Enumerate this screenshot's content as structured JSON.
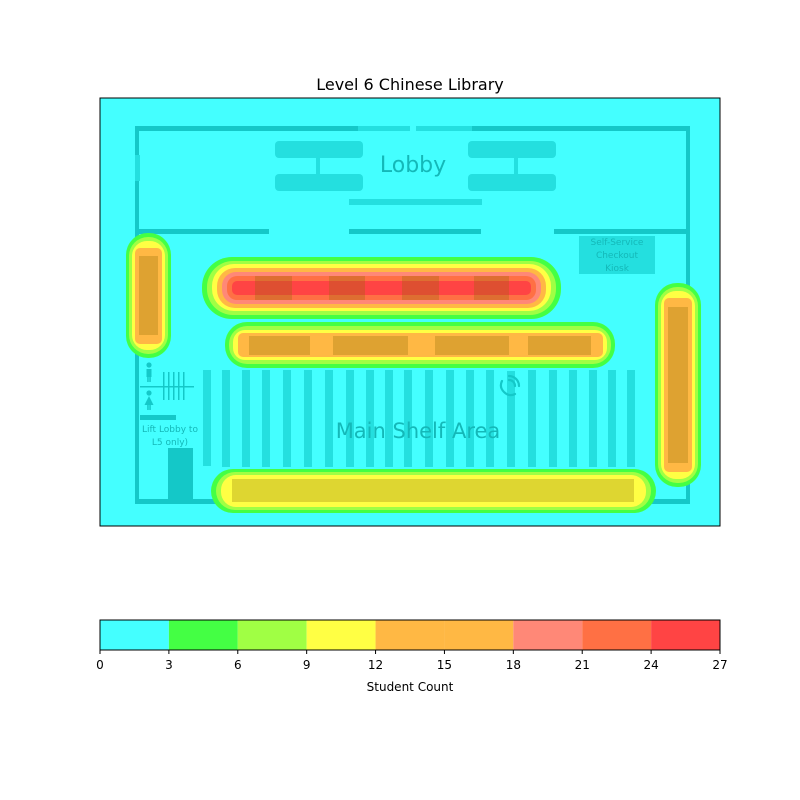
{
  "chart_data": {
    "type": "heatmap",
    "title": "Level 6 Chinese Library",
    "colorbar": {
      "label": "Student Count",
      "levels": [
        0,
        3,
        6,
        9,
        12,
        15,
        18,
        21,
        24,
        27
      ],
      "band_colors": [
        "#44ffff",
        "#44ff44",
        "#a0ff44",
        "#ffff44",
        "#ffb844",
        "#ffb844",
        "#ff8877",
        "#ff7044",
        "#ff4444"
      ],
      "ticks": [
        "0",
        "3",
        "6",
        "9",
        "12",
        "15",
        "18",
        "21",
        "24",
        "27"
      ]
    },
    "grid": false,
    "hotspots": [
      {
        "area": "left wall desks",
        "peak": 16
      },
      {
        "area": "upper study row",
        "peak": 26
      },
      {
        "area": "middle study row",
        "peak": 15
      },
      {
        "area": "right wall desks",
        "peak": 15
      },
      {
        "area": "bottom study row",
        "peak": 11
      }
    ],
    "floor_plan_labels": {
      "lobby": "Lobby",
      "kiosk": [
        "Self-Service",
        "Checkout",
        "Kiosk"
      ],
      "main_shelf": "Main Shelf Area",
      "lift": [
        "Lift Lobby to",
        "L5 only)"
      ]
    }
  }
}
